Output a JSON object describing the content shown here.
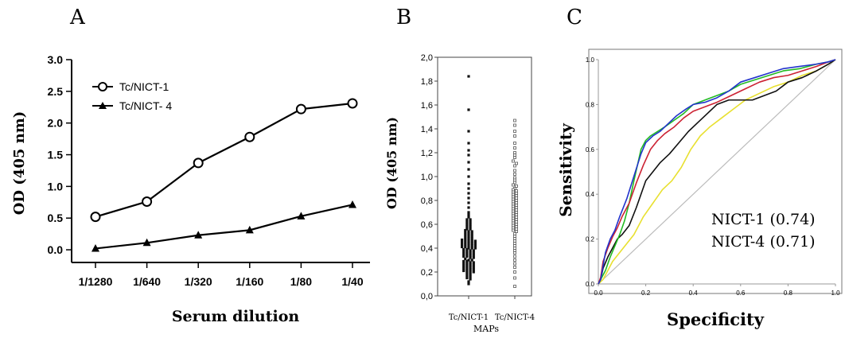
{
  "panels": {
    "a": "A",
    "b": "B",
    "c": "C"
  },
  "chart_data": [
    {
      "type": "line",
      "panel": "A",
      "xlabel": "Serum dilution",
      "ylabel": "OD (405 nm)",
      "categories": [
        "1/1280",
        "1/640",
        "1/320",
        "1/160",
        "1/80",
        "1/40"
      ],
      "ylim": [
        -0.2,
        3.0
      ],
      "yticks": [
        "0.0",
        "0.5",
        "1.0",
        "1.5",
        "2.0",
        "2.5",
        "3.0"
      ],
      "legend_position": "top-left",
      "series": [
        {
          "name": "Tc/NICT-1",
          "marker": "open-circle",
          "values": [
            0.52,
            0.76,
            1.37,
            1.78,
            2.22,
            2.31
          ]
        },
        {
          "name": "Tc/NICT- 4",
          "marker": "filled-triangle",
          "values": [
            0.02,
            0.11,
            0.23,
            0.31,
            0.53,
            0.71
          ]
        }
      ]
    },
    {
      "type": "scatter",
      "panel": "B",
      "xlabel": "MAPs",
      "ylabel": "OD (405 nm)",
      "categories": [
        "Tc/NICT-1",
        "Tc/NICT-4"
      ],
      "ylim": [
        0.0,
        2.0
      ],
      "yticks": [
        "0,0",
        "0,2",
        "0,4",
        "0,6",
        "0,8",
        "1,0",
        "1,2",
        "1,4",
        "1,6",
        "1,8",
        "2,0"
      ],
      "series": [
        {
          "name": "Tc/NICT-1",
          "marker": "filled-square",
          "values": [
            1.84,
            1.56,
            1.38,
            1.28,
            1.22,
            1.18,
            1.12,
            1.06,
            1.0,
            0.94,
            0.9,
            0.86,
            0.82,
            0.78,
            0.74,
            0.7,
            0.68,
            0.66,
            0.64,
            0.64,
            0.62,
            0.62,
            0.6,
            0.6,
            0.58,
            0.58,
            0.56,
            0.56,
            0.55,
            0.54,
            0.54,
            0.53,
            0.52,
            0.52,
            0.51,
            0.5,
            0.5,
            0.49,
            0.48,
            0.48,
            0.47,
            0.47,
            0.46,
            0.46,
            0.46,
            0.45,
            0.45,
            0.44,
            0.44,
            0.44,
            0.43,
            0.43,
            0.42,
            0.42,
            0.42,
            0.41,
            0.41,
            0.4,
            0.4,
            0.4,
            0.39,
            0.39,
            0.38,
            0.38,
            0.37,
            0.37,
            0.36,
            0.36,
            0.35,
            0.35,
            0.34,
            0.34,
            0.33,
            0.33,
            0.32,
            0.32,
            0.31,
            0.3,
            0.3,
            0.29,
            0.29,
            0.28,
            0.28,
            0.27,
            0.27,
            0.26,
            0.26,
            0.25,
            0.25,
            0.24,
            0.24,
            0.23,
            0.23,
            0.22,
            0.22,
            0.21,
            0.21,
            0.2,
            0.2,
            0.19,
            0.18,
            0.17,
            0.16,
            0.15,
            0.14,
            0.12,
            0.1
          ]
        },
        {
          "name": "Tc/NICT-4",
          "marker": "open-square",
          "values": [
            1.47,
            1.43,
            1.38,
            1.34,
            1.28,
            1.24,
            1.2,
            1.18,
            1.16,
            1.13,
            1.11,
            1.09,
            1.05,
            1.02,
            0.99,
            0.97,
            0.95,
            0.93,
            0.92,
            0.9,
            0.89,
            0.88,
            0.87,
            0.86,
            0.85,
            0.84,
            0.83,
            0.82,
            0.81,
            0.8,
            0.79,
            0.78,
            0.77,
            0.76,
            0.75,
            0.74,
            0.73,
            0.72,
            0.71,
            0.7,
            0.69,
            0.68,
            0.67,
            0.66,
            0.65,
            0.64,
            0.63,
            0.62,
            0.61,
            0.6,
            0.59,
            0.58,
            0.57,
            0.56,
            0.55,
            0.54,
            0.52,
            0.5,
            0.48,
            0.46,
            0.44,
            0.42,
            0.4,
            0.38,
            0.36,
            0.33,
            0.3,
            0.27,
            0.24,
            0.2,
            0.15,
            0.08
          ]
        }
      ]
    },
    {
      "type": "line",
      "panel": "C",
      "xlabel": "Specificity",
      "ylabel": "Sensitivity",
      "xlim": [
        0.0,
        1.0
      ],
      "ylim": [
        0.0,
        1.0
      ],
      "xticks": [
        "0.0",
        "0.2",
        "0.4",
        "0.6",
        "0.8",
        "1.0"
      ],
      "yticks": [
        "0.0",
        "0.2",
        "0.4",
        "0.6",
        "0.8",
        "1.0"
      ],
      "annotations": [
        "NICT-1 (0.74)",
        "NICT-4 (0.71)"
      ],
      "colors": {
        "blue": "#2233cc",
        "red": "#cc2233",
        "green": "#22bb22",
        "yellow": "#e8e030",
        "black": "#111111",
        "reference": "#bbbbbb"
      },
      "series": [
        {
          "color": "blue",
          "x": [
            0.0,
            0.01,
            0.02,
            0.03,
            0.05,
            0.07,
            0.09,
            0.12,
            0.15,
            0.18,
            0.2,
            0.23,
            0.26,
            0.3,
            0.33,
            0.37,
            0.4,
            0.45,
            0.5,
            0.55,
            0.6,
            0.66,
            0.72,
            0.78,
            0.85,
            0.92,
            0.97,
            1.0
          ],
          "y": [
            0.0,
            0.02,
            0.08,
            0.14,
            0.2,
            0.24,
            0.3,
            0.38,
            0.48,
            0.58,
            0.63,
            0.66,
            0.68,
            0.72,
            0.75,
            0.78,
            0.8,
            0.81,
            0.83,
            0.86,
            0.9,
            0.92,
            0.94,
            0.96,
            0.97,
            0.98,
            0.99,
            1.0
          ]
        },
        {
          "color": "red",
          "x": [
            0.0,
            0.01,
            0.02,
            0.04,
            0.06,
            0.08,
            0.1,
            0.13,
            0.16,
            0.19,
            0.22,
            0.25,
            0.28,
            0.32,
            0.36,
            0.4,
            0.45,
            0.5,
            0.56,
            0.62,
            0.68,
            0.74,
            0.8,
            0.86,
            0.92,
            0.97,
            1.0
          ],
          "y": [
            0.0,
            0.03,
            0.1,
            0.16,
            0.21,
            0.25,
            0.3,
            0.36,
            0.45,
            0.53,
            0.6,
            0.64,
            0.67,
            0.7,
            0.74,
            0.77,
            0.79,
            0.81,
            0.84,
            0.87,
            0.9,
            0.92,
            0.93,
            0.95,
            0.97,
            0.99,
            1.0
          ]
        },
        {
          "color": "green",
          "x": [
            0.0,
            0.01,
            0.03,
            0.05,
            0.07,
            0.09,
            0.11,
            0.13,
            0.15,
            0.18,
            0.2,
            0.22,
            0.25,
            0.28,
            0.32,
            0.36,
            0.4,
            0.45,
            0.5,
            0.55,
            0.6,
            0.66,
            0.72,
            0.78,
            0.85,
            0.92,
            0.97,
            1.0
          ],
          "y": [
            0.0,
            0.02,
            0.06,
            0.12,
            0.17,
            0.22,
            0.28,
            0.36,
            0.46,
            0.6,
            0.64,
            0.66,
            0.68,
            0.7,
            0.73,
            0.76,
            0.8,
            0.82,
            0.84,
            0.86,
            0.89,
            0.91,
            0.93,
            0.95,
            0.96,
            0.98,
            0.99,
            1.0
          ]
        },
        {
          "color": "yellow",
          "x": [
            0.0,
            0.02,
            0.04,
            0.06,
            0.09,
            0.12,
            0.15,
            0.19,
            0.23,
            0.27,
            0.31,
            0.35,
            0.39,
            0.43,
            0.47,
            0.52,
            0.57,
            0.62,
            0.68,
            0.74,
            0.8,
            0.86,
            0.92,
            0.97,
            1.0
          ],
          "y": [
            0.0,
            0.02,
            0.06,
            0.1,
            0.14,
            0.18,
            0.22,
            0.3,
            0.36,
            0.42,
            0.46,
            0.52,
            0.6,
            0.66,
            0.7,
            0.74,
            0.78,
            0.82,
            0.85,
            0.88,
            0.9,
            0.93,
            0.95,
            0.98,
            1.0
          ]
        },
        {
          "color": "black",
          "x": [
            0.0,
            0.01,
            0.02,
            0.04,
            0.06,
            0.08,
            0.1,
            0.13,
            0.16,
            0.2,
            0.23,
            0.26,
            0.3,
            0.34,
            0.38,
            0.42,
            0.46,
            0.5,
            0.55,
            0.6,
            0.65,
            0.7,
            0.75,
            0.8,
            0.86,
            0.92,
            0.97,
            1.0
          ],
          "y": [
            0.0,
            0.02,
            0.07,
            0.12,
            0.16,
            0.2,
            0.22,
            0.26,
            0.34,
            0.46,
            0.5,
            0.54,
            0.58,
            0.63,
            0.68,
            0.72,
            0.76,
            0.8,
            0.82,
            0.82,
            0.82,
            0.84,
            0.86,
            0.9,
            0.92,
            0.95,
            0.98,
            1.0
          ]
        },
        {
          "color": "reference",
          "x": [
            0.0,
            1.0
          ],
          "y": [
            0.0,
            1.0
          ]
        }
      ]
    }
  ]
}
